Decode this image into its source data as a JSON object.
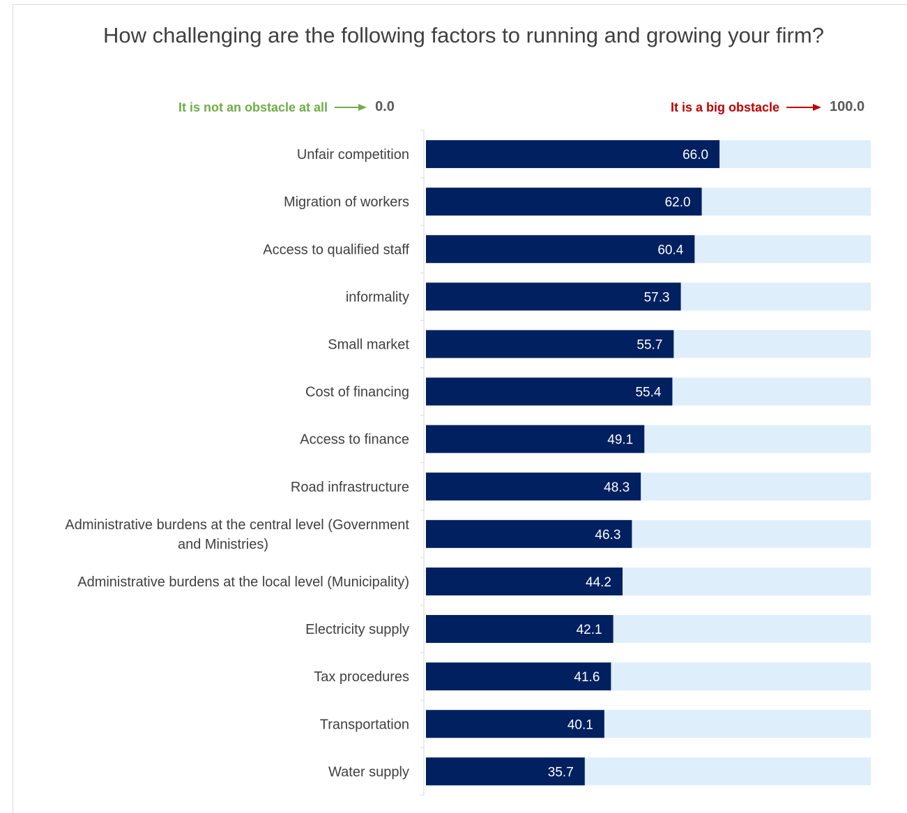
{
  "chart_data": {
    "type": "bar",
    "orientation": "horizontal",
    "title": "How challenging are the following factors to running and growing your firm?",
    "scale_min_label": "It is not an obstacle at all",
    "scale_min_value": "0.0",
    "scale_max_label": "It is a big obstacle",
    "scale_max_value": "100.0",
    "xlim": [
      0,
      100
    ],
    "colors": {
      "bar": "#002060",
      "track": "#deeffb",
      "min_label": "#70ad47",
      "max_label": "#c00000"
    },
    "categories": [
      [
        "Unfair competition"
      ],
      [
        "Migration of workers"
      ],
      [
        "Access to qualified staff"
      ],
      [
        "informality"
      ],
      [
        "Small market"
      ],
      [
        "Cost of financing"
      ],
      [
        "Access to finance"
      ],
      [
        "Road infrastructure"
      ],
      [
        "Administrative burdens at the central level (Government",
        "and Ministries)"
      ],
      [
        "Administrative burdens at the local level (Municipality)"
      ],
      [
        "Electricity supply"
      ],
      [
        "Tax procedures"
      ],
      [
        "Transportation"
      ],
      [
        "Water supply"
      ]
    ],
    "values": [
      66.0,
      62.0,
      60.4,
      57.3,
      55.7,
      55.4,
      49.1,
      48.3,
      46.3,
      44.2,
      42.1,
      41.6,
      40.1,
      35.7
    ],
    "value_labels": [
      "66.0",
      "62.0",
      "60.4",
      "57.3",
      "55.7",
      "55.4",
      "49.1",
      "48.3",
      "46.3",
      "44.2",
      "42.1",
      "41.6",
      "40.1",
      "35.7"
    ]
  }
}
